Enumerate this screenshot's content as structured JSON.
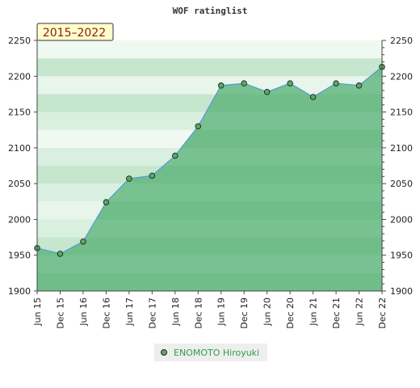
{
  "chart_data": {
    "type": "area",
    "title": "WOF ratinglist",
    "badge": "2015–2022",
    "xlabel": "",
    "ylabel": "",
    "ylim": [
      1900,
      2250
    ],
    "yticks": [
      1900,
      1950,
      2000,
      2050,
      2100,
      2150,
      2200,
      2250
    ],
    "x": [
      "Jun 15",
      "Dec 15",
      "Jun 16",
      "Dec 16",
      "Jun 17",
      "Dec 17",
      "Jun 18",
      "Dec 18",
      "Jun 19",
      "Dec 19",
      "Jun 20",
      "Dec 20",
      "Jun 21",
      "Dec 21",
      "Jun 22",
      "Dec 22"
    ],
    "series": [
      {
        "name": "ENOMOTO Hiroyuki",
        "values": [
          1960,
          1952,
          1969,
          2024,
          2057,
          2061,
          2089,
          2130,
          2187,
          2190,
          2178,
          2190,
          2171,
          2190,
          2187,
          2213
        ]
      }
    ],
    "legend": "bottom-center",
    "grid": true,
    "colors": {
      "line": "#5b9bd5",
      "fill": "#7dc595",
      "marker": "#55aa66",
      "badge_bg": "#ffffcc"
    }
  }
}
